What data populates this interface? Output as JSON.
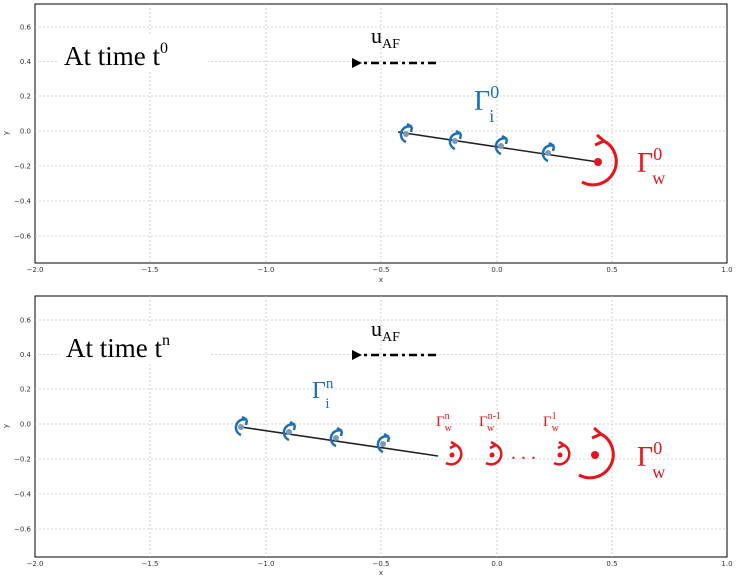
{
  "colors": {
    "blue": "#1f6fb5",
    "red": "#e8141c",
    "grid": "#c8c8c8",
    "line": "#222222",
    "node": "#7a9ab8"
  },
  "axes": {
    "xlabel": "x",
    "ylabel": "y",
    "x_ticks": [
      "−2.0",
      "−1.5",
      "−1.0",
      "−0.5",
      "0.0",
      "0.5",
      "1.0"
    ],
    "y_ticks": [
      "0.6",
      "0.4",
      "0.2",
      "0.0",
      "−0.2",
      "−0.4",
      "−0.6"
    ]
  },
  "arrow_label": {
    "base": "u",
    "sub": "AF"
  },
  "panel_top": {
    "title_base": "At time t",
    "title_sup": "0",
    "bound_label": {
      "base": "Γ",
      "sup": "0",
      "sub": "i"
    },
    "wake_label": {
      "base": "Γ",
      "sup": "0",
      "sub": "w"
    }
  },
  "panel_bottom": {
    "title_base": "At time t",
    "title_sup": "n",
    "bound_label": {
      "base": "Γ",
      "sup": "n",
      "sub": "i"
    },
    "wake_labels": [
      {
        "base": "Γ",
        "sup": "n",
        "sub": "w"
      },
      {
        "base": "Γ",
        "sup": "n-1",
        "sub": "w"
      },
      {
        "base": "Γ",
        "sup": "1",
        "sub": "w"
      }
    ],
    "ellipsis": ". . .",
    "wake_label_0": {
      "base": "Γ",
      "sup": "0",
      "sub": "w"
    }
  }
}
